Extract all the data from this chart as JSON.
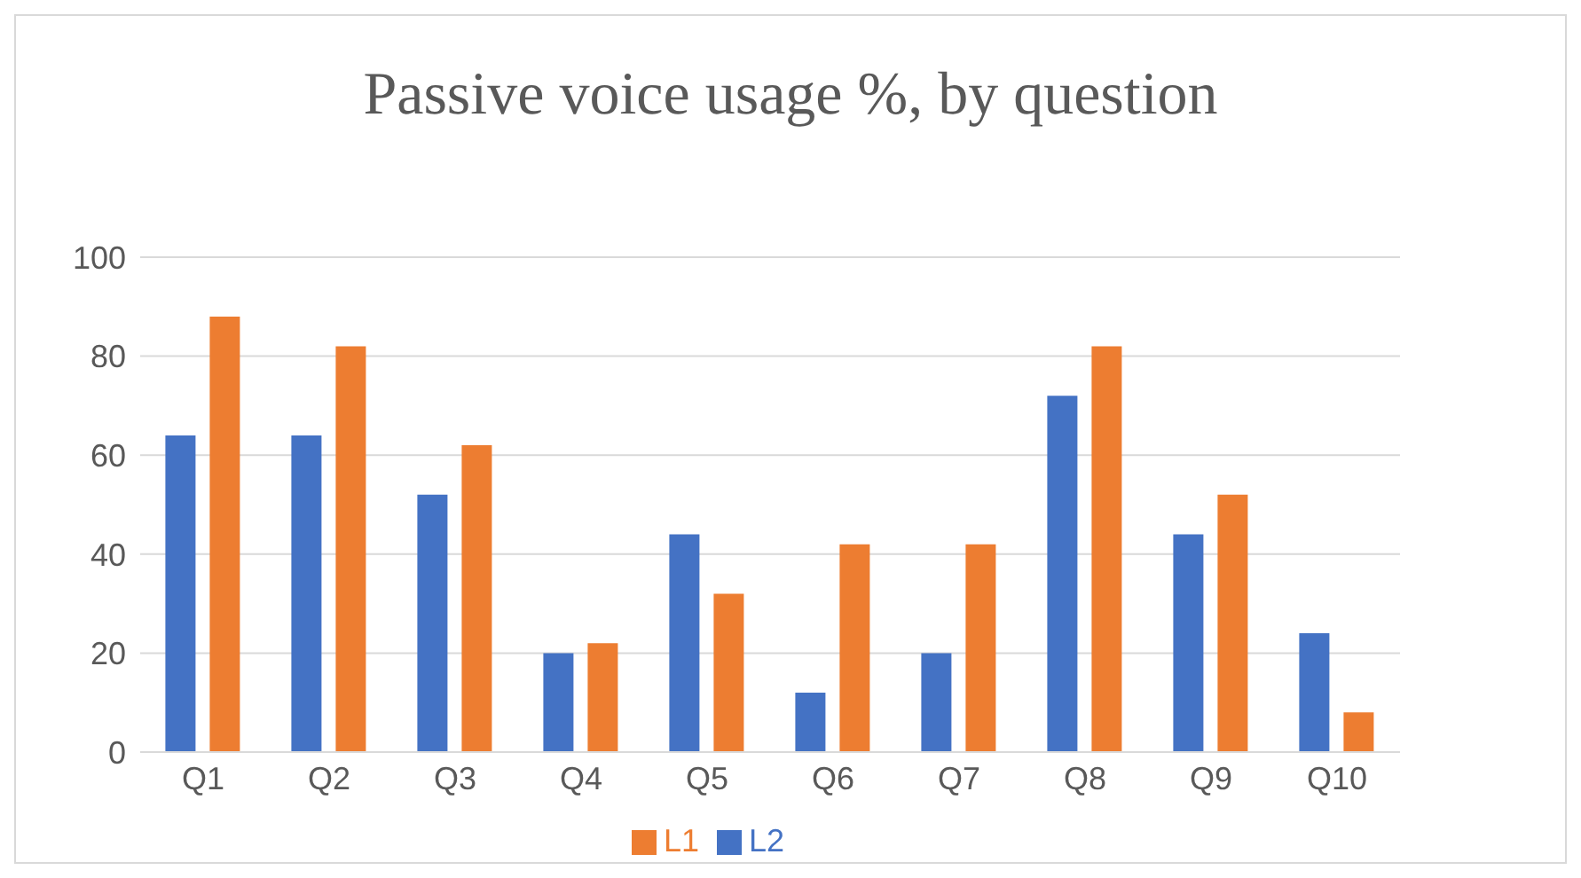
{
  "chart_data": {
    "type": "bar",
    "title": "Passive voice usage %, by question",
    "categories": [
      "Q1",
      "Q2",
      "Q3",
      "Q4",
      "Q5",
      "Q6",
      "Q7",
      "Q8",
      "Q9",
      "Q10"
    ],
    "series": [
      {
        "name": "L2",
        "color": "#4472c4",
        "values": [
          64,
          64,
          52,
          20,
          44,
          12,
          20,
          72,
          44,
          24
        ]
      },
      {
        "name": "L1",
        "color": "#ed7d31",
        "values": [
          88,
          82,
          62,
          22,
          32,
          42,
          42,
          82,
          52,
          8
        ]
      }
    ],
    "ylim": [
      0,
      100
    ],
    "yticks": [
      0,
      20,
      40,
      60,
      80,
      100
    ],
    "grid": "y",
    "legend": "bottom"
  }
}
